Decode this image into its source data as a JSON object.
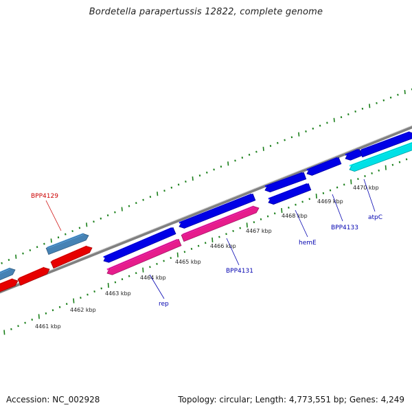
{
  "title": "Bordetella parapertussis 12822, complete genome",
  "footer": {
    "accession": "Accession: NC_002928",
    "summary": "Topology: circular; Length: 4,773,551 bp; Genes: 4,249"
  },
  "colors": {
    "background": "#ffffff",
    "backbone": "#808080",
    "ticks": "#1a7f1a",
    "cds_forward": "#0000e6",
    "cds_reverse_red": "#e60000",
    "cds_reverse_pink": "#e61c8c",
    "cds_steelblue": "#4682b4",
    "cds_cyan": "#00e0e6",
    "label_red": "#cc0000",
    "label_blue": "#0000b0"
  },
  "ruler": {
    "unit": "kbp",
    "labels": [
      "4461 kbp",
      "4462 kbp",
      "4463 kbp",
      "4464 kbp",
      "4465 kbp",
      "4466 kbp",
      "4467 kbp",
      "4468 kbp",
      "4469 kbp",
      "4470 kbp"
    ]
  },
  "genes": [
    {
      "name": "BPP4129",
      "color": "label_red"
    },
    {
      "name": "rep",
      "color": "label_blue"
    },
    {
      "name": "BPP4131",
      "color": "label_blue"
    },
    {
      "name": "hemE",
      "color": "label_blue"
    },
    {
      "name": "BPP4133",
      "color": "label_blue"
    },
    {
      "name": "atpC",
      "color": "label_blue"
    }
  ]
}
